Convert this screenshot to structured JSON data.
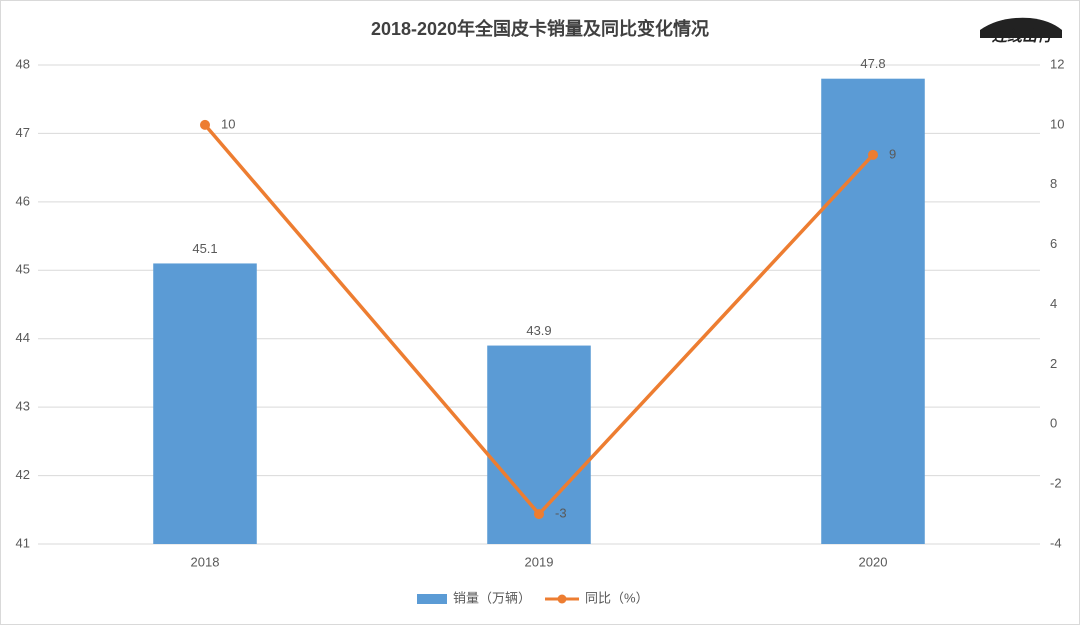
{
  "chart_data": {
    "type": "bar",
    "title": "2018-2020年全国皮卡销量及同比变化情况",
    "watermark": "连线出行",
    "categories": [
      "2018",
      "2019",
      "2020"
    ],
    "series": [
      {
        "name": "销量（万辆）",
        "type": "bar",
        "color": "#5b9bd5",
        "values": [
          45.1,
          43.9,
          47.8
        ]
      },
      {
        "name": "同比（%）",
        "type": "line",
        "axis": "y2",
        "color": "#ed7d31",
        "values": [
          10,
          -3,
          9
        ]
      }
    ],
    "ylim": [
      41,
      48
    ],
    "yticks": [
      41,
      42,
      43,
      44,
      45,
      46,
      47,
      48
    ],
    "y2lim": [
      -4,
      12
    ],
    "y2ticks": [
      -4,
      -2,
      0,
      2,
      4,
      6,
      8,
      10,
      12
    ],
    "grid": true,
    "legend": "bottom"
  }
}
